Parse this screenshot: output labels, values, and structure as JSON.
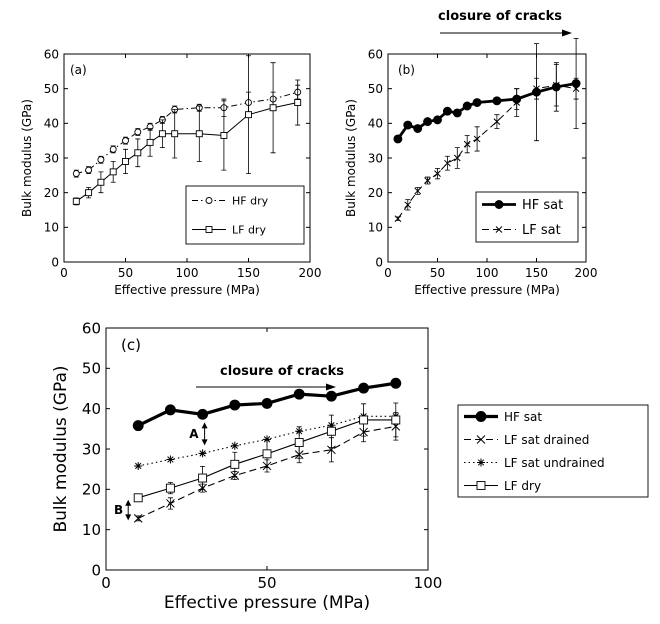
{
  "chart_data": [
    {
      "id": "a",
      "type": "line",
      "panel_label": "(a)",
      "xlabel": "Effective pressure (MPa)",
      "ylabel": "Bulk modulus (GPa)",
      "xlim": [
        0,
        200
      ],
      "ylim": [
        0,
        60
      ],
      "xticks": [
        0,
        50,
        100,
        150,
        200
      ],
      "yticks": [
        0,
        10,
        20,
        30,
        40,
        50,
        60
      ],
      "legend_position": "bottom-right",
      "series": [
        {
          "name": "HF dry",
          "style": "dash-dot",
          "marker": "circle",
          "x": [
            10,
            20,
            30,
            40,
            50,
            60,
            70,
            80,
            90,
            110,
            130,
            150,
            170,
            190
          ],
          "y": [
            25.5,
            26.5,
            29.5,
            32.5,
            35,
            37.5,
            39,
            41,
            44,
            44.5,
            44.5,
            46,
            47,
            49
          ],
          "err": [
            1,
            1,
            1,
            1,
            1,
            1,
            1,
            1,
            1,
            1,
            2.5,
            3,
            2,
            2
          ]
        },
        {
          "name": "LF dry",
          "style": "solid",
          "marker": "square",
          "x": [
            10,
            20,
            30,
            40,
            50,
            60,
            70,
            80,
            90,
            110,
            130,
            150,
            170,
            190
          ],
          "y": [
            17.5,
            20,
            23,
            26,
            29,
            31.5,
            34.5,
            37,
            37,
            37,
            36.5,
            42.5,
            44.5,
            46
          ],
          "err": [
            1,
            1.5,
            3,
            3,
            3.5,
            4,
            4,
            4,
            7,
            8,
            10,
            17,
            13,
            6.5
          ]
        }
      ]
    },
    {
      "id": "b",
      "type": "line",
      "panel_label": "(b)",
      "xlabel": "Effective pressure (MPa)",
      "ylabel": "Bulk modulus  (GPa)",
      "xlim": [
        0,
        200
      ],
      "ylim": [
        0,
        60
      ],
      "xticks": [
        0,
        50,
        100,
        150,
        200
      ],
      "yticks": [
        0,
        10,
        20,
        30,
        40,
        50,
        60
      ],
      "legend_position": "bottom-right",
      "annotation": "closure of cracks",
      "series": [
        {
          "name": "HF sat",
          "style": "thick-solid",
          "marker": "filled-circle",
          "x": [
            10,
            20,
            30,
            40,
            50,
            60,
            70,
            80,
            90,
            110,
            130,
            150,
            170,
            190
          ],
          "y": [
            35.5,
            39.5,
            38.5,
            40.5,
            41,
            43.5,
            43,
            45,
            46,
            46.5,
            47,
            49,
            50.5,
            51.5
          ],
          "err": [
            0,
            0,
            0,
            0,
            0,
            0,
            0,
            0,
            0,
            0,
            3,
            14,
            7,
            13
          ]
        },
        {
          "name": "LF sat",
          "style": "dashed",
          "marker": "x",
          "x": [
            10,
            20,
            30,
            40,
            50,
            60,
            70,
            80,
            90,
            110,
            130,
            150,
            170,
            190
          ],
          "y": [
            12.5,
            16.5,
            20.5,
            23.5,
            25.5,
            28.5,
            30,
            34,
            35.5,
            40.5,
            46,
            50,
            51,
            50
          ],
          "err": [
            0.5,
            1.5,
            1,
            1,
            1.5,
            2,
            3,
            2.5,
            3.5,
            2,
            4,
            3,
            6,
            3
          ]
        }
      ]
    },
    {
      "id": "c",
      "type": "line",
      "panel_label": "(c)",
      "xlabel": "Effective pressure (MPa)",
      "ylabel": "Bulk modulus (GPa)",
      "xlim": [
        0,
        100
      ],
      "ylim": [
        0,
        60
      ],
      "xticks": [
        0,
        50,
        100
      ],
      "yticks": [
        0,
        10,
        20,
        30,
        40,
        50,
        60
      ],
      "legend_position": "outside-right",
      "annotation": "closure of cracks",
      "marker_labels": [
        "A",
        "B"
      ],
      "series": [
        {
          "name": "HF sat",
          "style": "thick-solid",
          "marker": "filled-circle",
          "x": [
            10,
            20,
            30,
            40,
            50,
            60,
            70,
            80,
            90
          ],
          "y": [
            35.8,
            39.7,
            38.6,
            40.9,
            41.3,
            43.6,
            43.1,
            45.1,
            46.3
          ],
          "err": [
            0,
            0,
            0,
            0,
            0,
            0,
            0,
            0,
            0
          ]
        },
        {
          "name": "LF sat drained",
          "style": "dashed",
          "marker": "x",
          "x": [
            10,
            20,
            30,
            40,
            50,
            60,
            70,
            80,
            90
          ],
          "y": [
            12.8,
            16.5,
            20.3,
            23.4,
            25.8,
            28.6,
            29.8,
            34.2,
            35.6
          ],
          "err": [
            0.6,
            1.4,
            1,
            1,
            1.5,
            2,
            3,
            2.4,
            3.4
          ]
        },
        {
          "name": "LF sat undrained",
          "style": "dotted",
          "marker": "asterisk",
          "x": [
            10,
            20,
            30,
            40,
            50,
            60,
            70,
            80,
            90
          ],
          "y": [
            25.8,
            27.4,
            28.9,
            30.8,
            32.4,
            34.4,
            35.9,
            38.1,
            38.1
          ],
          "err": [
            0,
            0,
            0,
            0,
            0,
            0,
            0,
            0,
            0
          ]
        },
        {
          "name": "LF dry",
          "style": "solid",
          "marker": "square",
          "x": [
            10,
            20,
            30,
            40,
            50,
            60,
            70,
            80,
            90
          ],
          "y": [
            17.9,
            20.3,
            22.8,
            26.2,
            28.8,
            31.6,
            34.4,
            37.2,
            37.2
          ],
          "err": [
            0.6,
            1.4,
            2.9,
            3,
            3.4,
            3.9,
            4,
            4,
            4.2
          ]
        }
      ]
    }
  ]
}
